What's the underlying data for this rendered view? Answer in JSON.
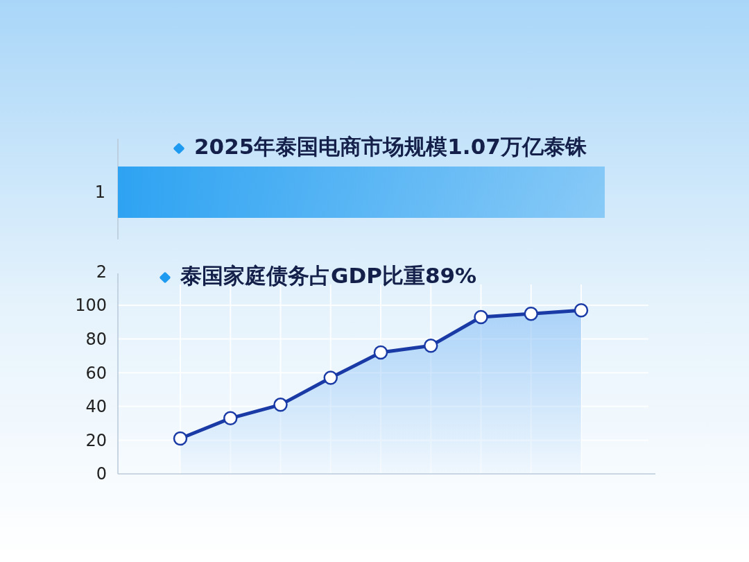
{
  "chart_data": [
    {
      "type": "other",
      "title": "2025年泰国电商市场规模1.07万亿泰铢",
      "annotations": [
        "1"
      ]
    },
    {
      "type": "area",
      "title": "泰国家庭债务占GDP比重89%",
      "ylabel": "2",
      "categories": [
        null,
        null,
        null,
        null,
        null,
        null,
        null,
        null,
        null
      ],
      "series": [
        {
          "color": "#1a3aa6",
          "values": [
            21,
            33,
            41,
            57,
            72,
            76,
            93,
            95,
            97
          ]
        }
      ],
      "ylim": [
        0,
        100
      ],
      "yticks": [
        0,
        20,
        40,
        60,
        80,
        100
      ],
      "grid": true,
      "marker": "circle",
      "line_style": "solid"
    }
  ]
}
